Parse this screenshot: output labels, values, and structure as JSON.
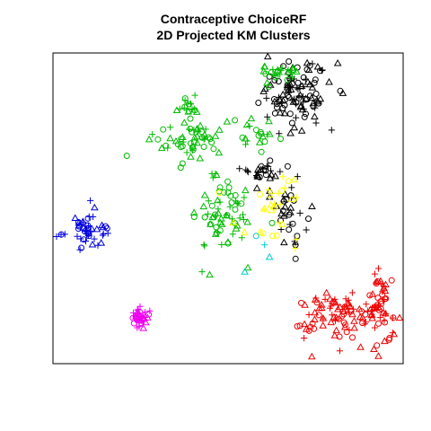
{
  "chart_data": {
    "type": "scatter",
    "title": "Contraceptive ChoiceRF",
    "subtitle": "2D Projected KM Clusters",
    "xlabel": "",
    "ylabel": "",
    "xlim": [
      0,
      390
    ],
    "ylim": [
      0,
      346
    ],
    "axes_shown": false,
    "grid": false,
    "legend": "none",
    "series": [
      {
        "color": "#000000",
        "clusters": [
          {
            "cx": 270,
            "cy": 300,
            "sx": 20,
            "sy": 18,
            "n": 110
          },
          {
            "cx": 232,
            "cy": 215,
            "sx": 14,
            "sy": 6,
            "n": 25
          },
          {
            "cx": 262,
            "cy": 170,
            "sx": 10,
            "sy": 22,
            "n": 35
          }
        ]
      },
      {
        "color": "#00bb00",
        "clusters": [
          {
            "cx": 152,
            "cy": 285,
            "sx": 6,
            "sy": 5,
            "n": 18
          },
          {
            "cx": 150,
            "cy": 250,
            "sx": 20,
            "sy": 12,
            "n": 55
          },
          {
            "cx": 248,
            "cy": 322,
            "sx": 10,
            "sy": 8,
            "n": 25
          },
          {
            "cx": 185,
            "cy": 165,
            "sx": 18,
            "sy": 22,
            "n": 70
          },
          {
            "cx": 225,
            "cy": 258,
            "sx": 12,
            "sy": 10,
            "n": 20
          }
        ]
      },
      {
        "color": "#ffff00",
        "clusters": [
          {
            "cx": 248,
            "cy": 168,
            "sx": 22,
            "sy": 22,
            "n": 30
          }
        ]
      },
      {
        "color": "#00cccc",
        "clusters": [
          {
            "cx": 225,
            "cy": 125,
            "sx": 10,
            "sy": 12,
            "n": 4
          }
        ]
      },
      {
        "color": "#0000dd",
        "clusters": [
          {
            "cx": 38,
            "cy": 150,
            "sx": 14,
            "sy": 10,
            "n": 50
          }
        ]
      },
      {
        "color": "#ee00ee",
        "clusters": [
          {
            "cx": 95,
            "cy": 52,
            "sx": 5,
            "sy": 6,
            "n": 40
          }
        ]
      },
      {
        "color": "#ee0000",
        "clusters": [
          {
            "cx": 320,
            "cy": 55,
            "sx": 28,
            "sy": 14,
            "n": 100
          },
          {
            "cx": 365,
            "cy": 65,
            "sx": 8,
            "sy": 20,
            "n": 40
          }
        ]
      }
    ]
  }
}
